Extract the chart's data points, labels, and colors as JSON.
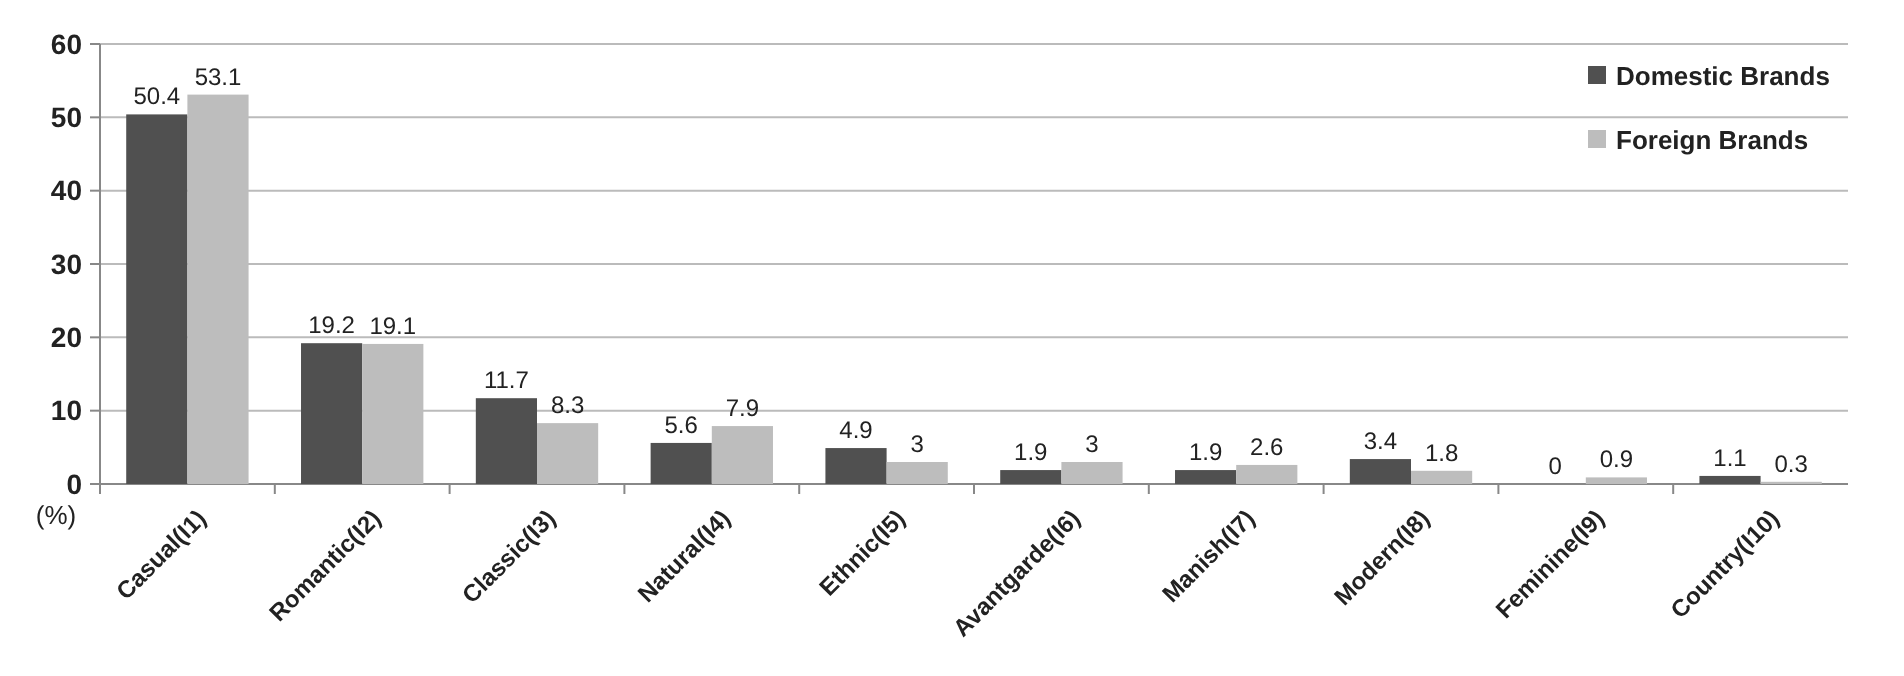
{
  "chart_data": {
    "type": "bar",
    "ylabel": "(%)",
    "categories": [
      "Casual(I1)",
      "Romantic(I2)",
      "Classic(I3)",
      "Natural(I4)",
      "Ethnic(I5)",
      "Avantgarde(I6)",
      "Manish(I7)",
      "Modern(I8)",
      "Feminine(I9)",
      "Country(I10)"
    ],
    "series": [
      {
        "name": "Domestic Brands",
        "color": "#505050",
        "values": [
          50.4,
          19.2,
          11.7,
          5.6,
          4.9,
          1.9,
          1.9,
          3.4,
          0,
          1.1
        ]
      },
      {
        "name": "Foreign Brands",
        "color": "#bdbdbd",
        "values": [
          53.1,
          19.1,
          8.3,
          7.9,
          3,
          3,
          2.6,
          1.8,
          0.9,
          0.3
        ]
      }
    ],
    "ylim": [
      0,
      60
    ],
    "yticks": [
      0,
      10,
      20,
      30,
      40,
      50,
      60
    ],
    "grid": "y",
    "legend": "top right",
    "data_labels": true
  }
}
